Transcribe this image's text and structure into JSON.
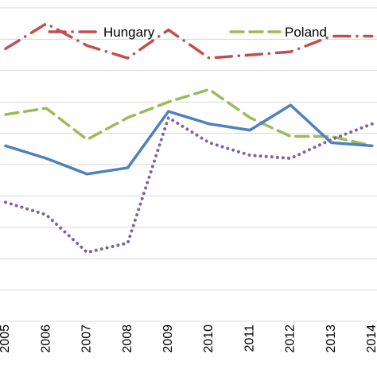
{
  "chart_data": {
    "type": "line",
    "categories": [
      "2005",
      "2006",
      "2007",
      "2008",
      "2009",
      "2010",
      "2011",
      "2012",
      "2013",
      "2014"
    ],
    "ylim": [
      0,
      10
    ],
    "grid": true,
    "legend_position": "top",
    "series": [
      {
        "name": "Hungary",
        "color": "#c0504d",
        "dash": "dash-dot",
        "values": [
          8.7,
          9.5,
          8.8,
          8.4,
          9.3,
          8.4,
          8.5,
          8.6,
          9.1,
          9.1
        ]
      },
      {
        "name": "Poland",
        "color": "#9bbb59",
        "dash": "dash",
        "values": [
          6.6,
          6.8,
          5.8,
          6.5,
          7.0,
          7.4,
          6.5,
          5.9,
          5.9,
          5.6
        ]
      },
      {
        "name": "",
        "color": "#4f81bd",
        "dash": "solid",
        "values": [
          5.6,
          5.2,
          4.7,
          4.9,
          6.7,
          6.3,
          6.1,
          6.9,
          5.7,
          5.6
        ]
      },
      {
        "name": "",
        "color": "#8064a2",
        "dash": "dot",
        "values": [
          3.8,
          3.4,
          2.2,
          2.5,
          6.5,
          5.7,
          5.3,
          5.2,
          5.8,
          6.3
        ]
      }
    ]
  }
}
